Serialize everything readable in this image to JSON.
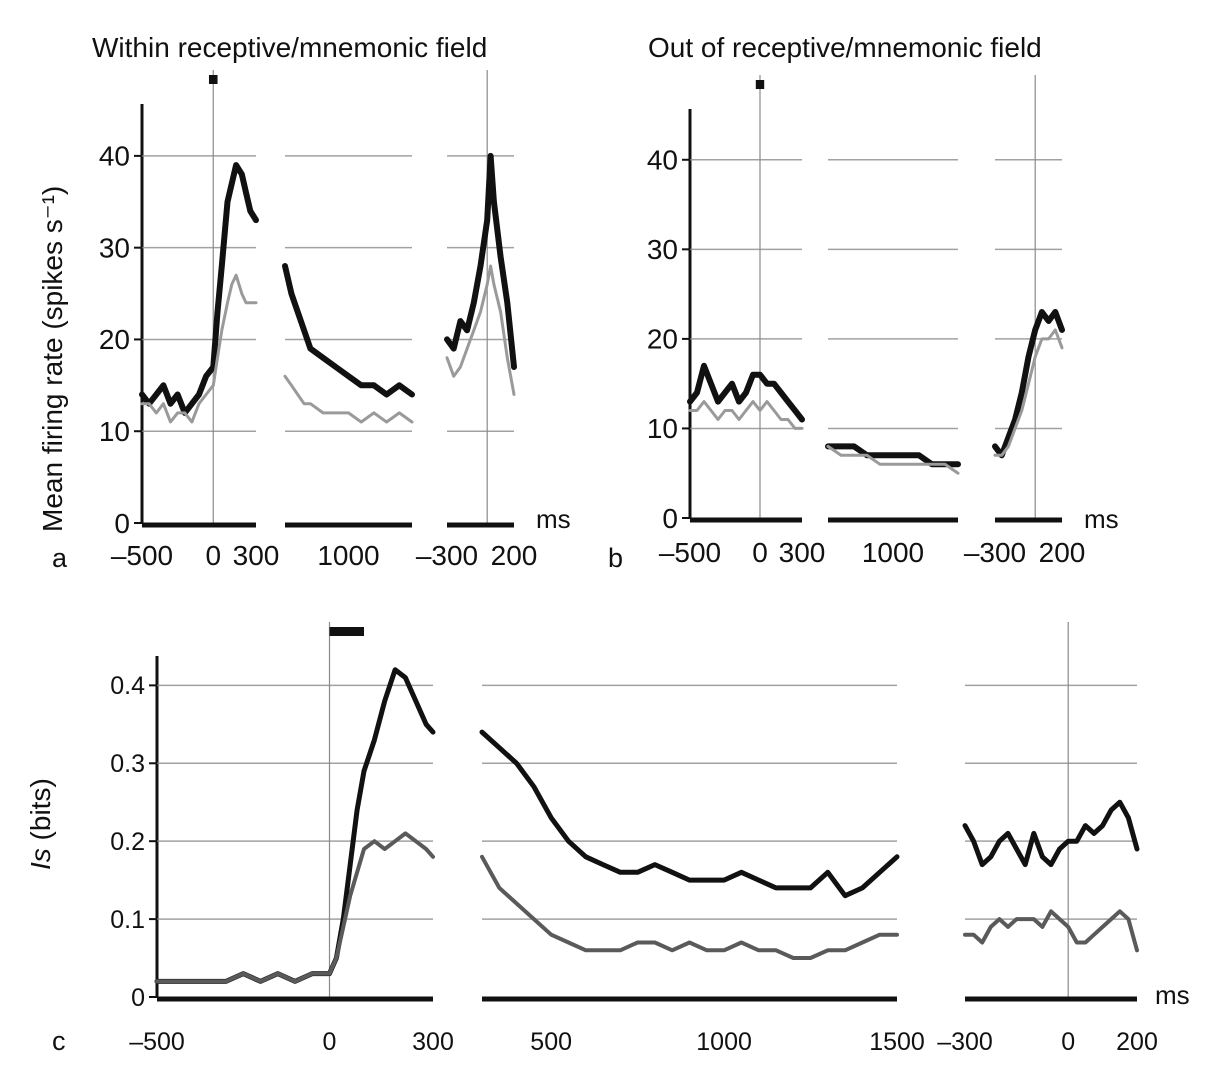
{
  "figure": {
    "panel_a_title": "Within receptive/mnemonic field",
    "panel_b_title": "Out of receptive/mnemonic field",
    "panel_labels": {
      "a": "a",
      "b": "b",
      "c": "c"
    },
    "ylabel_top": "Mean firing rate (spikes s⁻¹)",
    "ylabel_bottom_italic": "Is",
    "ylabel_bottom_unit": " (bits)",
    "unit_ms": "ms"
  },
  "colors": {
    "dark": "#111111",
    "light": "#9a9a9a",
    "mid": "#5a5a5a",
    "grid": "#8a8a8a"
  },
  "chart_data": [
    {
      "id": "a",
      "type": "line",
      "title": "Within receptive/mnemonic field",
      "ylabel": "Mean firing rate (spikes s⁻¹)",
      "xlabel": "ms",
      "ylim": [
        0,
        45
      ],
      "yticks": [
        0,
        10,
        20,
        30,
        40
      ],
      "grid": true,
      "segments": [
        {
          "xlim": [
            -500,
            300
          ],
          "xticks": [
            -500,
            0,
            300
          ],
          "ticklabels": [
            "–500",
            "0",
            "300"
          ],
          "marker": [
            -30,
            30
          ],
          "series": [
            {
              "style": "dark",
              "x": [
                -500,
                -450,
                -400,
                -350,
                -300,
                -250,
                -200,
                -150,
                -100,
                -50,
                0,
                30,
                60,
                100,
                130,
                160,
                200,
                230,
                260,
                300
              ],
              "y": [
                14,
                13,
                14,
                15,
                13,
                14,
                12,
                13,
                14,
                16,
                17,
                23,
                28,
                35,
                37,
                39,
                38,
                36,
                34,
                33
              ]
            },
            {
              "style": "light",
              "x": [
                -500,
                -450,
                -400,
                -350,
                -300,
                -250,
                -200,
                -150,
                -100,
                -50,
                0,
                30,
                60,
                100,
                130,
                160,
                200,
                230,
                260,
                300
              ],
              "y": [
                13,
                13,
                12,
                13,
                11,
                12,
                12,
                11,
                13,
                14,
                15,
                18,
                21,
                24,
                26,
                27,
                25,
                24,
                24,
                24
              ]
            }
          ]
        },
        {
          "xlim": [
            500,
            1500
          ],
          "xticks": [
            1000
          ],
          "ticklabels": [
            "1000"
          ],
          "series": [
            {
              "style": "dark",
              "x": [
                500,
                550,
                600,
                650,
                700,
                800,
                900,
                1000,
                1100,
                1200,
                1300,
                1400,
                1500
              ],
              "y": [
                28,
                25,
                23,
                21,
                19,
                18,
                17,
                16,
                15,
                15,
                14,
                15,
                14
              ]
            },
            {
              "style": "light",
              "x": [
                500,
                550,
                600,
                650,
                700,
                800,
                900,
                1000,
                1100,
                1200,
                1300,
                1400,
                1500
              ],
              "y": [
                16,
                15,
                14,
                13,
                13,
                12,
                12,
                12,
                11,
                12,
                11,
                12,
                11
              ]
            }
          ]
        },
        {
          "xlim": [
            -300,
            200
          ],
          "xticks": [
            -300,
            200
          ],
          "ticklabels": [
            "–300",
            "200"
          ],
          "series": [
            {
              "style": "dark",
              "x": [
                -300,
                -250,
                -200,
                -150,
                -100,
                -50,
                0,
                25,
                50,
                100,
                150,
                200
              ],
              "y": [
                20,
                19,
                22,
                21,
                24,
                28,
                33,
                40,
                35,
                29,
                24,
                17
              ]
            },
            {
              "style": "light",
              "x": [
                -300,
                -250,
                -200,
                -150,
                -100,
                -50,
                0,
                25,
                50,
                100,
                150,
                200
              ],
              "y": [
                18,
                16,
                17,
                19,
                21,
                23,
                26,
                28,
                26,
                23,
                18,
                14
              ]
            }
          ]
        }
      ]
    },
    {
      "id": "b",
      "type": "line",
      "title": "Out of receptive/mnemonic field",
      "xlabel": "ms",
      "ylim": [
        0,
        45
      ],
      "yticks": [
        0,
        10,
        20,
        30,
        40
      ],
      "grid": true,
      "segments": [
        {
          "xlim": [
            -500,
            300
          ],
          "xticks": [
            -500,
            0,
            300
          ],
          "ticklabels": [
            "–500",
            "0",
            "300"
          ],
          "marker": [
            -30,
            30
          ],
          "series": [
            {
              "style": "dark",
              "x": [
                -500,
                -450,
                -400,
                -350,
                -300,
                -250,
                -200,
                -150,
                -100,
                -50,
                0,
                50,
                100,
                150,
                200,
                250,
                300
              ],
              "y": [
                13,
                14,
                17,
                15,
                13,
                14,
                15,
                13,
                14,
                16,
                16,
                15,
                15,
                14,
                13,
                12,
                11
              ]
            },
            {
              "style": "light",
              "x": [
                -500,
                -450,
                -400,
                -350,
                -300,
                -250,
                -200,
                -150,
                -100,
                -50,
                0,
                50,
                100,
                150,
                200,
                250,
                300
              ],
              "y": [
                12,
                12,
                13,
                12,
                11,
                12,
                12,
                11,
                12,
                13,
                12,
                13,
                12,
                11,
                11,
                10,
                10
              ]
            }
          ]
        },
        {
          "xlim": [
            500,
            1500
          ],
          "xticks": [
            1000
          ],
          "ticklabels": [
            "1000"
          ],
          "series": [
            {
              "style": "dark",
              "x": [
                500,
                600,
                700,
                800,
                900,
                1000,
                1100,
                1200,
                1300,
                1400,
                1500
              ],
              "y": [
                8,
                8,
                8,
                7,
                7,
                7,
                7,
                7,
                6,
                6,
                6
              ]
            },
            {
              "style": "light",
              "x": [
                500,
                600,
                700,
                800,
                900,
                1000,
                1100,
                1200,
                1300,
                1400,
                1500
              ],
              "y": [
                8,
                7,
                7,
                7,
                6,
                6,
                6,
                6,
                6,
                6,
                5
              ]
            }
          ]
        },
        {
          "xlim": [
            -300,
            200
          ],
          "xticks": [
            -300,
            200
          ],
          "ticklabels": [
            "–300",
            "200"
          ],
          "series": [
            {
              "style": "dark",
              "x": [
                -300,
                -250,
                -200,
                -150,
                -100,
                -50,
                0,
                50,
                100,
                150,
                200
              ],
              "y": [
                8,
                7,
                9,
                11,
                14,
                18,
                21,
                23,
                22,
                23,
                21
              ]
            },
            {
              "style": "light",
              "x": [
                -300,
                -250,
                -200,
                -150,
                -100,
                -50,
                0,
                50,
                100,
                150,
                200
              ],
              "y": [
                7,
                7,
                8,
                10,
                12,
                15,
                18,
                20,
                20,
                21,
                19
              ]
            }
          ]
        }
      ]
    },
    {
      "id": "c",
      "type": "line",
      "ylabel": "Is (bits)",
      "xlabel": "ms",
      "ylim": [
        0,
        0.43
      ],
      "yticks": [
        0,
        0.1,
        0.2,
        0.3,
        0.4
      ],
      "yticklabels": [
        "0",
        "0.1",
        "0.2",
        "0.3",
        "0.4"
      ],
      "grid": true,
      "segments": [
        {
          "xlim": [
            -500,
            300
          ],
          "xticks": [
            -500,
            0,
            300
          ],
          "ticklabels": [
            "–500",
            "0",
            "300"
          ],
          "marker": [
            0,
            100
          ],
          "series": [
            {
              "style": "dark",
              "x": [
                -500,
                -450,
                -400,
                -350,
                -300,
                -250,
                -200,
                -150,
                -100,
                -50,
                0,
                20,
                40,
                60,
                80,
                100,
                130,
                160,
                190,
                220,
                250,
                280,
                300
              ],
              "y": [
                0.02,
                0.02,
                0.02,
                0.02,
                0.02,
                0.03,
                0.02,
                0.03,
                0.02,
                0.03,
                0.03,
                0.05,
                0.1,
                0.17,
                0.24,
                0.29,
                0.33,
                0.38,
                0.42,
                0.41,
                0.38,
                0.35,
                0.34
              ]
            },
            {
              "style": "mid",
              "x": [
                -500,
                -450,
                -400,
                -350,
                -300,
                -250,
                -200,
                -150,
                -100,
                -50,
                0,
                20,
                40,
                60,
                80,
                100,
                130,
                160,
                190,
                220,
                250,
                280,
                300
              ],
              "y": [
                0.02,
                0.02,
                0.02,
                0.02,
                0.02,
                0.03,
                0.02,
                0.03,
                0.02,
                0.03,
                0.03,
                0.05,
                0.09,
                0.13,
                0.16,
                0.19,
                0.2,
                0.19,
                0.2,
                0.21,
                0.2,
                0.19,
                0.18
              ]
            }
          ]
        },
        {
          "xlim": [
            300,
            1500
          ],
          "xticks": [
            500,
            1000,
            1500
          ],
          "ticklabels": [
            "500",
            "1000",
            "1500"
          ],
          "series": [
            {
              "style": "dark",
              "x": [
                300,
                350,
                400,
                450,
                500,
                550,
                600,
                650,
                700,
                750,
                800,
                850,
                900,
                950,
                1000,
                1050,
                1100,
                1150,
                1200,
                1250,
                1300,
                1350,
                1400,
                1450,
                1500
              ],
              "y": [
                0.34,
                0.32,
                0.3,
                0.27,
                0.23,
                0.2,
                0.18,
                0.17,
                0.16,
                0.16,
                0.17,
                0.16,
                0.15,
                0.15,
                0.15,
                0.16,
                0.15,
                0.14,
                0.14,
                0.14,
                0.16,
                0.13,
                0.14,
                0.16,
                0.18
              ]
            },
            {
              "style": "mid",
              "x": [
                300,
                350,
                400,
                450,
                500,
                550,
                600,
                650,
                700,
                750,
                800,
                850,
                900,
                950,
                1000,
                1050,
                1100,
                1150,
                1200,
                1250,
                1300,
                1350,
                1400,
                1450,
                1500
              ],
              "y": [
                0.18,
                0.14,
                0.12,
                0.1,
                0.08,
                0.07,
                0.06,
                0.06,
                0.06,
                0.07,
                0.07,
                0.06,
                0.07,
                0.06,
                0.06,
                0.07,
                0.06,
                0.06,
                0.05,
                0.05,
                0.06,
                0.06,
                0.07,
                0.08,
                0.08
              ]
            }
          ]
        },
        {
          "xlim": [
            -300,
            200
          ],
          "xticks": [
            -300,
            0,
            200
          ],
          "ticklabels": [
            "–300",
            "0",
            "200"
          ],
          "series": [
            {
              "style": "dark",
              "x": [
                -300,
                -275,
                -250,
                -225,
                -200,
                -175,
                -150,
                -125,
                -100,
                -75,
                -50,
                -25,
                0,
                25,
                50,
                75,
                100,
                125,
                150,
                175,
                200
              ],
              "y": [
                0.22,
                0.2,
                0.17,
                0.18,
                0.2,
                0.21,
                0.19,
                0.17,
                0.21,
                0.18,
                0.17,
                0.19,
                0.2,
                0.2,
                0.22,
                0.21,
                0.22,
                0.24,
                0.25,
                0.23,
                0.19
              ]
            },
            {
              "style": "mid",
              "x": [
                -300,
                -275,
                -250,
                -225,
                -200,
                -175,
                -150,
                -125,
                -100,
                -75,
                -50,
                -25,
                0,
                25,
                50,
                75,
                100,
                125,
                150,
                175,
                200
              ],
              "y": [
                0.08,
                0.08,
                0.07,
                0.09,
                0.1,
                0.09,
                0.1,
                0.1,
                0.1,
                0.09,
                0.11,
                0.1,
                0.09,
                0.07,
                0.07,
                0.08,
                0.09,
                0.1,
                0.11,
                0.1,
                0.06
              ]
            }
          ]
        }
      ]
    }
  ]
}
